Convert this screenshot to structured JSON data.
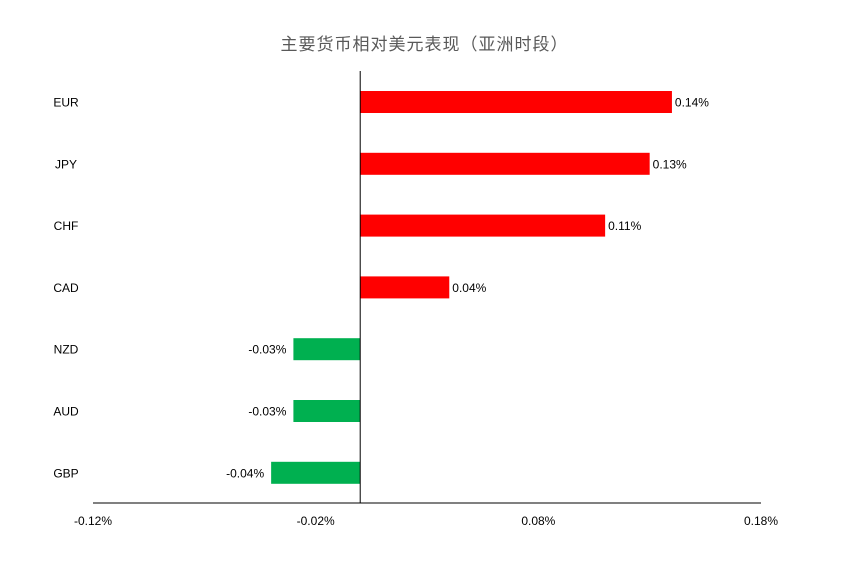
{
  "chart_data": {
    "type": "bar",
    "orientation": "horizontal",
    "title": "主要货币相对美元表现（亚洲时段）",
    "xlabel": "",
    "ylabel": "",
    "categories": [
      "EUR",
      "JPY",
      "CHF",
      "CAD",
      "NZD",
      "AUD",
      "GBP"
    ],
    "values": [
      0.14,
      0.13,
      0.11,
      0.04,
      -0.03,
      -0.03,
      -0.04
    ],
    "value_labels": [
      "0.14%",
      "0.13%",
      "0.11%",
      "0.04%",
      "-0.03%",
      "-0.03%",
      "-0.04%"
    ],
    "xlim": [
      -0.12,
      0.18
    ],
    "x_ticks": [
      -0.12,
      -0.02,
      0.08,
      0.18
    ],
    "x_tick_labels": [
      "-0.12%",
      "-0.02%",
      "0.08%",
      "0.18%"
    ],
    "grid": false,
    "legend": "none",
    "colors": {
      "positive": "#ff0000",
      "negative": "#00b050",
      "axis": "#000000",
      "text": "#000000",
      "title": "#595959"
    }
  }
}
